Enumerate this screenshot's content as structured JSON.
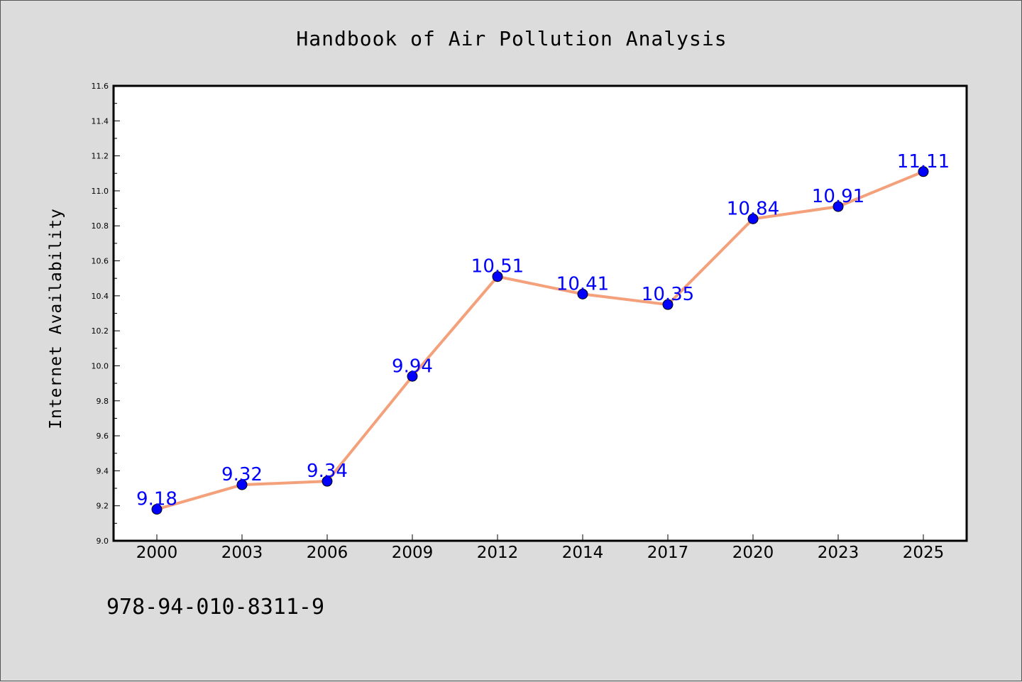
{
  "chart_data": {
    "type": "line",
    "title": "Handbook of Air Pollution Analysis",
    "xlabel": "",
    "ylabel": "Internet Availability",
    "x": [
      "2000",
      "2003",
      "2006",
      "2009",
      "2012",
      "2014",
      "2017",
      "2020",
      "2023",
      "2025"
    ],
    "series": [
      {
        "values": [
          9.18,
          9.32,
          9.34,
          9.94,
          10.51,
          10.41,
          10.35,
          10.84,
          10.91,
          11.11
        ],
        "data_labels": [
          "9.18",
          "9.32",
          "9.34",
          "9.94",
          "10.51",
          "10.41",
          "10.35",
          "10.84",
          "10.91",
          "11.11"
        ],
        "line_color": "#f4a07a",
        "marker_color": "#0000ff",
        "label_color": "#0000ff"
      }
    ],
    "ylim": [
      9.0,
      11.6
    ],
    "yticks": [
      "9.0",
      "9.2",
      "9.4",
      "9.6",
      "9.8",
      "10.0",
      "10.2",
      "10.4",
      "10.6",
      "10.8",
      "11.0",
      "11.2",
      "11.4",
      "11.6"
    ],
    "grid": false,
    "legend": "none"
  },
  "footer_code": "978-94-010-8311-9",
  "colors": {
    "page_background": "#dcdcdc",
    "plot_background": "#ffffff"
  }
}
